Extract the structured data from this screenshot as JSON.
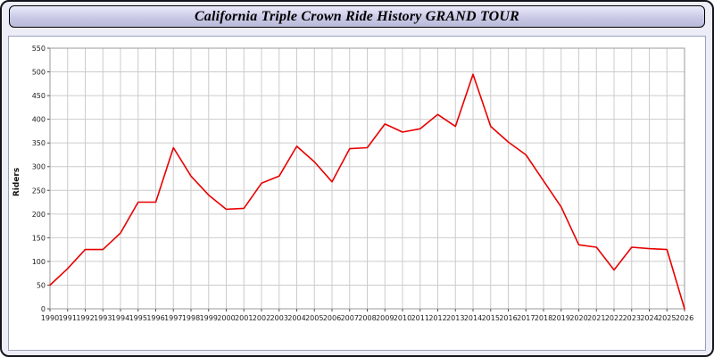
{
  "window": {
    "border_color": "#14141c",
    "background_color": "#ededf7"
  },
  "chart_data": {
    "type": "line",
    "title": "California Triple Crown Ride History GRAND TOUR",
    "xlabel": "",
    "ylabel": "Riders",
    "ylim": [
      0,
      550
    ],
    "ytick_step": 50,
    "grid": true,
    "legend": "none",
    "line_color": "#e80000",
    "grid_color": "#cccccc",
    "axis_color": "#999999",
    "tick_label_color": "#1a1a1a",
    "x": [
      1990,
      1991,
      1992,
      1993,
      1994,
      1995,
      1996,
      1997,
      1998,
      1999,
      2000,
      2001,
      2002,
      2003,
      2004,
      2005,
      2006,
      2007,
      2008,
      2009,
      2010,
      2011,
      2012,
      2013,
      2014,
      2015,
      2016,
      2017,
      2018,
      2019,
      2020,
      2021,
      2022,
      2023,
      2024,
      2025,
      2026
    ],
    "values": [
      50,
      85,
      125,
      125,
      160,
      225,
      225,
      340,
      280,
      240,
      210,
      212,
      265,
      280,
      343,
      310,
      268,
      338,
      340,
      390,
      373,
      380,
      410,
      385,
      495,
      385,
      352,
      325,
      270,
      215,
      135,
      130,
      82,
      130,
      127,
      125,
      0
    ]
  }
}
